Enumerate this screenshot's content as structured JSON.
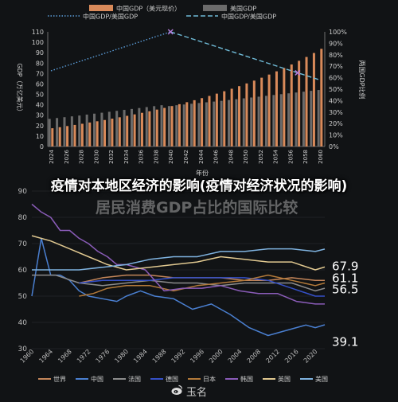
{
  "overlay": {
    "caption": "疫情对本地区经济的影响(疫情对经济状况的影响)",
    "ghost_text": "居民消费GDP占比的国际比较"
  },
  "brand": {
    "name": "玉名",
    "icon": "weibo-style-icon"
  },
  "colors": {
    "china_bar": "#d98a5a",
    "us_bar": "#6b6b6b",
    "ratio_dotted": "#5a9bd6",
    "ratio_dashed": "#6fbad6",
    "world": "#c4865a",
    "china": "#4a7fd0",
    "france": "#8c8c8c",
    "germany": "#3550c8",
    "japan": "#b37a3a",
    "korea": "#8a5cb8",
    "uk": "#e0c890",
    "usa": "#7fb3e0"
  },
  "chart_data": [
    {
      "type": "bar",
      "legend": [
        "中国GDP（美元现价）",
        "美国GDP",
        "中国GDP/美国GDP",
        "中国GDP/美国GDP"
      ],
      "ylabel": "GDP（万亿美元）",
      "y2label": "两国GDP比例",
      "xlabel": "年份",
      "ylim": [
        0,
        110
      ],
      "y2lim": [
        0,
        100
      ],
      "yticks": [
        0,
        10,
        20,
        30,
        40,
        50,
        60,
        70,
        80,
        90,
        100,
        110
      ],
      "y2ticks": [
        "0%",
        "10%",
        "20%",
        "30%",
        "40%",
        "50%",
        "60%",
        "70%",
        "80%",
        "90%",
        "100%"
      ],
      "xtick_labels": [
        "2024",
        "2026",
        "2028",
        "2030",
        "2032",
        "2034",
        "2036",
        "2038",
        "2040",
        "2042",
        "2044",
        "2046",
        "2048",
        "2050",
        "2052",
        "2054",
        "2056",
        "2058",
        "2060"
      ],
      "years": [
        2024,
        2025,
        2026,
        2027,
        2028,
        2029,
        2030,
        2031,
        2032,
        2033,
        2034,
        2035,
        2036,
        2037,
        2038,
        2039,
        2040,
        2041,
        2042,
        2043,
        2044,
        2045,
        2046,
        2047,
        2048,
        2049,
        2050,
        2051,
        2052,
        2053,
        2054,
        2055,
        2056,
        2057,
        2058,
        2059,
        2060
      ],
      "series": [
        {
          "name": "中国GDP（美元现价）",
          "values": [
            17.5,
            18.5,
            19.6,
            20.7,
            21.8,
            23,
            24.2,
            25.4,
            26.7,
            28,
            29.4,
            30.8,
            32.3,
            33.8,
            35.4,
            37,
            38.8,
            40.6,
            42.5,
            44.4,
            46.4,
            48.5,
            50.7,
            53,
            55.4,
            57.9,
            60.5,
            63.2,
            66,
            69,
            72.1,
            75.3,
            78.7,
            82.2,
            85.9,
            89.7,
            93.7
          ]
        },
        {
          "name": "美国GDP",
          "values": [
            26.5,
            27.3,
            28.1,
            28.9,
            29.7,
            30.6,
            31.5,
            32.4,
            33.3,
            34.2,
            35.1,
            36,
            36.9,
            37.8,
            38.7,
            39.6,
            38.8,
            39.6,
            40.3,
            41,
            41.7,
            42.4,
            43.1,
            43.8,
            44.6,
            45.4,
            46.2,
            47,
            47.8,
            48.6,
            49.4,
            50.2,
            51,
            51.8,
            52.6,
            53.4,
            54.2
          ]
        },
        {
          "name": "中国GDP/美国GDP",
          "style": "dotted",
          "x": [
            2024,
            2040
          ],
          "values": [
            66,
            100
          ]
        },
        {
          "name": "中国GDP/美国GDP",
          "style": "dashed",
          "x": [
            2040,
            2060
          ],
          "values": [
            100,
            58
          ]
        }
      ]
    },
    {
      "type": "line",
      "ylim": [
        30,
        90
      ],
      "yticks": [
        30,
        40,
        50,
        60,
        70,
        80,
        90
      ],
      "xtick_labels": [
        "1960",
        "1964",
        "1968",
        "1972",
        "1976",
        "1980",
        "1984",
        "1988",
        "1992",
        "1996",
        "2000",
        "2004",
        "2008",
        "2012",
        "2016",
        "2020"
      ],
      "end_labels": [
        "67.9",
        "61.1",
        "56.5",
        "39.1"
      ],
      "legend": [
        "世界",
        "中国",
        "法国",
        "德国",
        "日本",
        "韩国",
        "英国",
        "美国"
      ],
      "series": [
        {
          "name": "世界",
          "x": [
            1970,
            1975,
            1980,
            1985,
            1990,
            1995,
            2000,
            2005,
            2010,
            2015,
            2020,
            2022
          ],
          "values": [
            55,
            57,
            58,
            58,
            57,
            57,
            57,
            56,
            56,
            57,
            56,
            56
          ]
        },
        {
          "name": "中国",
          "x": [
            1960,
            1962,
            1964,
            1966,
            1968,
            1970,
            1972,
            1975,
            1978,
            1980,
            1983,
            1986,
            1990,
            1994,
            1998,
            2002,
            2006,
            2010,
            2014,
            2018,
            2020,
            2022
          ],
          "values": [
            50,
            72,
            58,
            58,
            56,
            52,
            50,
            49,
            48,
            50,
            52,
            50,
            49,
            45,
            47,
            43,
            38,
            35,
            37,
            39,
            38,
            39.1
          ]
        },
        {
          "name": "法国",
          "x": [
            1960,
            1965,
            1970,
            1975,
            1980,
            1985,
            1990,
            1995,
            2000,
            2005,
            2010,
            2015,
            2020,
            2022
          ],
          "values": [
            58,
            58,
            55,
            54,
            55,
            56,
            55,
            55,
            54,
            55,
            55,
            55,
            52,
            53
          ]
        },
        {
          "name": "德国",
          "x": [
            1970,
            1975,
            1980,
            1985,
            1990,
            1995,
            2000,
            2005,
            2010,
            2015,
            2020,
            2022
          ],
          "values": [
            55,
            56,
            56,
            56,
            57,
            57,
            57,
            57,
            56,
            53,
            50,
            50
          ]
        },
        {
          "name": "日本",
          "x": [
            1970,
            1973,
            1976,
            1980,
            1985,
            1990,
            1995,
            2000,
            2005,
            2010,
            2015,
            2020,
            2022
          ],
          "values": [
            50,
            51,
            53,
            54,
            54,
            52,
            54,
            55,
            56,
            58,
            56,
            54,
            55
          ]
        },
        {
          "name": "韩国",
          "x": [
            1960,
            1962,
            1964,
            1966,
            1968,
            1970,
            1972,
            1974,
            1976,
            1978,
            1980,
            1984,
            1988,
            1992,
            1996,
            2000,
            2004,
            2008,
            2012,
            2016,
            2020,
            2022
          ],
          "values": [
            85,
            82,
            80,
            75,
            75,
            72,
            70,
            67,
            65,
            62,
            62,
            60,
            52,
            53,
            53,
            54,
            52,
            51,
            51,
            48,
            47,
            47
          ]
        },
        {
          "name": "英国",
          "x": [
            1960,
            1964,
            1968,
            1972,
            1976,
            1980,
            1985,
            1990,
            1995,
            2000,
            2005,
            2010,
            2015,
            2020,
            2022
          ],
          "values": [
            73,
            71,
            68,
            65,
            62,
            60,
            61,
            62,
            63,
            65,
            64,
            63,
            63,
            60,
            61.1
          ]
        },
        {
          "name": "美国",
          "x": [
            1960,
            1965,
            1970,
            1975,
            1980,
            1985,
            1990,
            1995,
            2000,
            2005,
            2010,
            2015,
            2020,
            2022
          ],
          "values": [
            60,
            60,
            60,
            61,
            62,
            64,
            65,
            65,
            67,
            67,
            68,
            68,
            67,
            67.9
          ]
        }
      ]
    }
  ]
}
